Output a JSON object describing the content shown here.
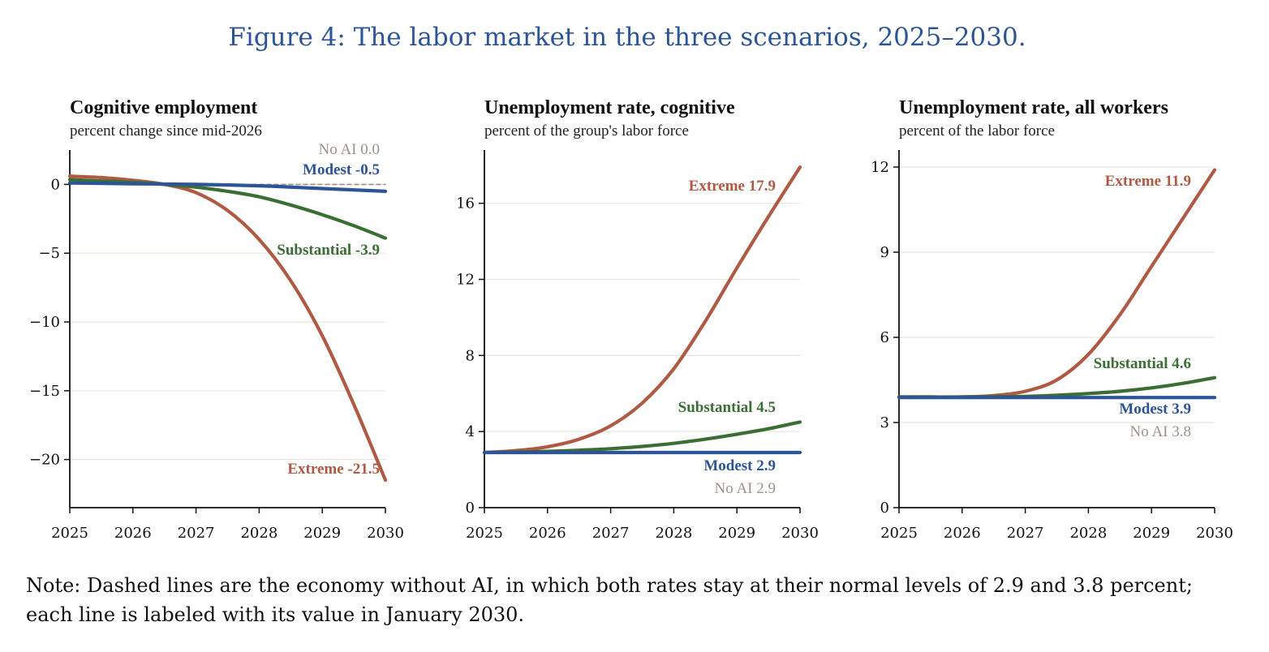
{
  "figure_title": "Figure 4: The labor market in the three scenarios, 2025–2030.",
  "note": "Note: Dashed lines are the economy without AI, in which both rates stay at their normal levels of 2.9 and 3.8 percent; each line is labeled with its value in January 2030.",
  "colors": {
    "extreme": "#b05a44",
    "substantial": "#3a6e34",
    "modest": "#2c5597",
    "no_ai": "#9c9388",
    "grid": "#e8e6da",
    "axis": "#111111"
  },
  "chart_data": [
    {
      "type": "line",
      "title": "Cognitive employment",
      "subtitle": "percent change since mid-2026",
      "xlim": [
        2025,
        2030
      ],
      "ylim": [
        -23.5,
        2.5
      ],
      "xticks": [
        2025,
        2026,
        2027,
        2028,
        2029,
        2030
      ],
      "xtick_labels": [
        "2025",
        "2026",
        "2027",
        "2028",
        "2029",
        "2030"
      ],
      "yticks": [
        0,
        -5,
        -10,
        -15,
        -20
      ],
      "ytick_labels": [
        "0",
        "−5",
        "−10",
        "−15",
        "−20"
      ],
      "grid": "horizontal",
      "series": [
        {
          "name": "No AI",
          "key": "no_ai",
          "dashed": true,
          "label": "No AI 0.0",
          "x": [
            2025,
            2026,
            2027,
            2028,
            2029,
            2030
          ],
          "y": [
            0.1,
            0.05,
            0.0,
            0.0,
            0.0,
            0.0
          ]
        },
        {
          "name": "Extreme",
          "key": "extreme",
          "label": "Extreme -21.5",
          "x": [
            2025,
            2025.5,
            2026,
            2026.5,
            2027,
            2027.5,
            2028,
            2028.5,
            2029,
            2029.5,
            2030
          ],
          "y": [
            0.6,
            0.5,
            0.3,
            0.0,
            -0.6,
            -1.9,
            -4.0,
            -7.0,
            -11.0,
            -16.0,
            -21.5
          ]
        },
        {
          "name": "Substantial",
          "key": "substantial",
          "label": "Substantial -3.9",
          "x": [
            2025,
            2025.5,
            2026,
            2026.5,
            2027,
            2027.5,
            2028,
            2028.5,
            2029,
            2029.5,
            2030
          ],
          "y": [
            0.35,
            0.25,
            0.15,
            0.0,
            -0.2,
            -0.5,
            -0.9,
            -1.5,
            -2.2,
            -3.0,
            -3.9
          ]
        },
        {
          "name": "Modest",
          "key": "modest",
          "label": "Modest -0.5",
          "x": [
            2025,
            2026,
            2027,
            2028,
            2029,
            2030
          ],
          "y": [
            0.1,
            0.05,
            0.0,
            -0.1,
            -0.3,
            -0.5
          ]
        }
      ]
    },
    {
      "type": "line",
      "title": "Unemployment rate, cognitive",
      "subtitle": "percent of the group's labor force",
      "xlim": [
        2025,
        2030
      ],
      "ylim": [
        0,
        18.8
      ],
      "xticks": [
        2025,
        2026,
        2027,
        2028,
        2029,
        2030
      ],
      "xtick_labels": [
        "2025",
        "2026",
        "2027",
        "2028",
        "2029",
        "2030"
      ],
      "yticks": [
        0,
        4,
        8,
        12,
        16
      ],
      "ytick_labels": [
        "0",
        "4",
        "8",
        "12",
        "16"
      ],
      "grid": "horizontal",
      "series": [
        {
          "name": "No AI",
          "key": "no_ai",
          "dashed": true,
          "label": "No AI 2.9",
          "x": [
            2025,
            2030
          ],
          "y": [
            2.9,
            2.9
          ]
        },
        {
          "name": "Extreme",
          "key": "extreme",
          "label": "Extreme 17.9",
          "x": [
            2025,
            2025.5,
            2026,
            2026.5,
            2027,
            2027.5,
            2028,
            2028.5,
            2029,
            2029.5,
            2030
          ],
          "y": [
            2.9,
            3.0,
            3.2,
            3.6,
            4.3,
            5.5,
            7.3,
            9.8,
            12.6,
            15.3,
            17.9
          ]
        },
        {
          "name": "Substantial",
          "key": "substantial",
          "label": "Substantial 4.5",
          "x": [
            2025,
            2025.5,
            2026,
            2026.5,
            2027,
            2027.5,
            2028,
            2028.5,
            2029,
            2029.5,
            2030
          ],
          "y": [
            2.9,
            2.92,
            2.96,
            3.02,
            3.1,
            3.22,
            3.38,
            3.6,
            3.86,
            4.15,
            4.5
          ]
        },
        {
          "name": "Modest",
          "key": "modest",
          "label": "Modest 2.9",
          "x": [
            2025,
            2026,
            2027,
            2028,
            2029,
            2030
          ],
          "y": [
            2.9,
            2.9,
            2.9,
            2.9,
            2.9,
            2.9
          ]
        }
      ]
    },
    {
      "type": "line",
      "title": "Unemployment rate, all workers",
      "subtitle": "percent of the labor force",
      "xlim": [
        2025,
        2030
      ],
      "ylim": [
        0,
        12.6
      ],
      "xticks": [
        2025,
        2026,
        2027,
        2028,
        2029,
        2030
      ],
      "xtick_labels": [
        "2025",
        "2026",
        "2027",
        "2028",
        "2029",
        "2030"
      ],
      "yticks": [
        0,
        3,
        6,
        9,
        12
      ],
      "ytick_labels": [
        "0",
        "3",
        "6",
        "9",
        "12"
      ],
      "grid": "horizontal",
      "series": [
        {
          "name": "No AI",
          "key": "no_ai",
          "dashed": true,
          "label": "No AI 3.8",
          "x": [
            2025,
            2030
          ],
          "y": [
            3.85,
            3.85
          ]
        },
        {
          "name": "Extreme",
          "key": "extreme",
          "label": "Extreme 11.9",
          "x": [
            2025,
            2025.5,
            2026,
            2026.5,
            2027,
            2027.5,
            2028,
            2028.5,
            2029,
            2029.5,
            2030
          ],
          "y": [
            3.9,
            3.9,
            3.9,
            3.95,
            4.1,
            4.5,
            5.4,
            6.8,
            8.5,
            10.2,
            11.9
          ]
        },
        {
          "name": "Substantial",
          "key": "substantial",
          "label": "Substantial 4.6",
          "x": [
            2025,
            2026,
            2027,
            2027.5,
            2028,
            2028.5,
            2029,
            2029.5,
            2030
          ],
          "y": [
            3.9,
            3.9,
            3.92,
            3.96,
            4.02,
            4.1,
            4.22,
            4.38,
            4.58
          ]
        },
        {
          "name": "Modest",
          "key": "modest",
          "label": "Modest 3.9",
          "x": [
            2025,
            2026,
            2027,
            2028,
            2029,
            2030
          ],
          "y": [
            3.88,
            3.88,
            3.88,
            3.88,
            3.88,
            3.88
          ]
        }
      ]
    }
  ]
}
